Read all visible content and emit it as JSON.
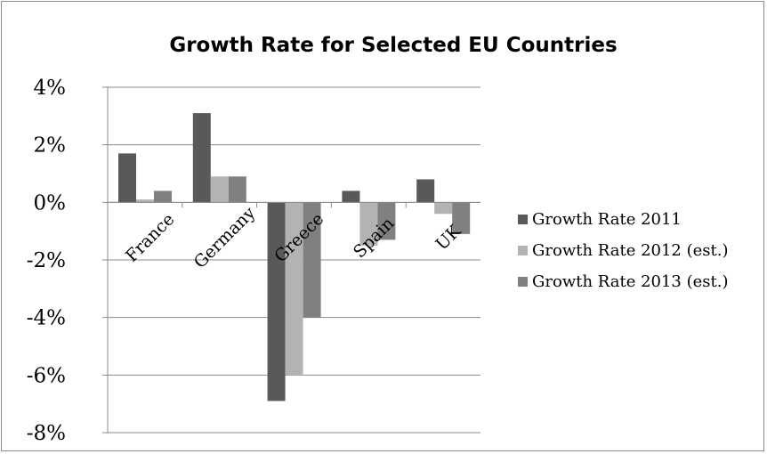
{
  "chart_data": {
    "type": "bar",
    "title": "Growth Rate for Selected EU Countries",
    "xlabel": "",
    "ylabel": "",
    "categories": [
      "France",
      "Germany",
      "Greece",
      "Spain",
      "UK"
    ],
    "series": [
      {
        "name": "Growth Rate 2011",
        "values": [
          1.7,
          3.1,
          -6.9,
          0.4,
          0.8
        ],
        "color": "#595959"
      },
      {
        "name": "Growth Rate 2012 (est.)",
        "values": [
          0.1,
          0.9,
          -6.0,
          -1.5,
          -0.4
        ],
        "color": "#b3b3b3"
      },
      {
        "name": "Growth Rate 2013 (est.)",
        "values": [
          0.4,
          0.9,
          -4.0,
          -1.3,
          -1.1
        ],
        "color": "#808080"
      }
    ],
    "ylim": [
      -8,
      4
    ],
    "yticks": [
      4,
      2,
      0,
      -2,
      -4,
      -6,
      -8
    ],
    "ytick_labels": [
      "4%",
      "2%",
      "0%",
      "-2%",
      "-4%",
      "-6%",
      "-8%"
    ],
    "grid": true,
    "legend_position": "right"
  }
}
